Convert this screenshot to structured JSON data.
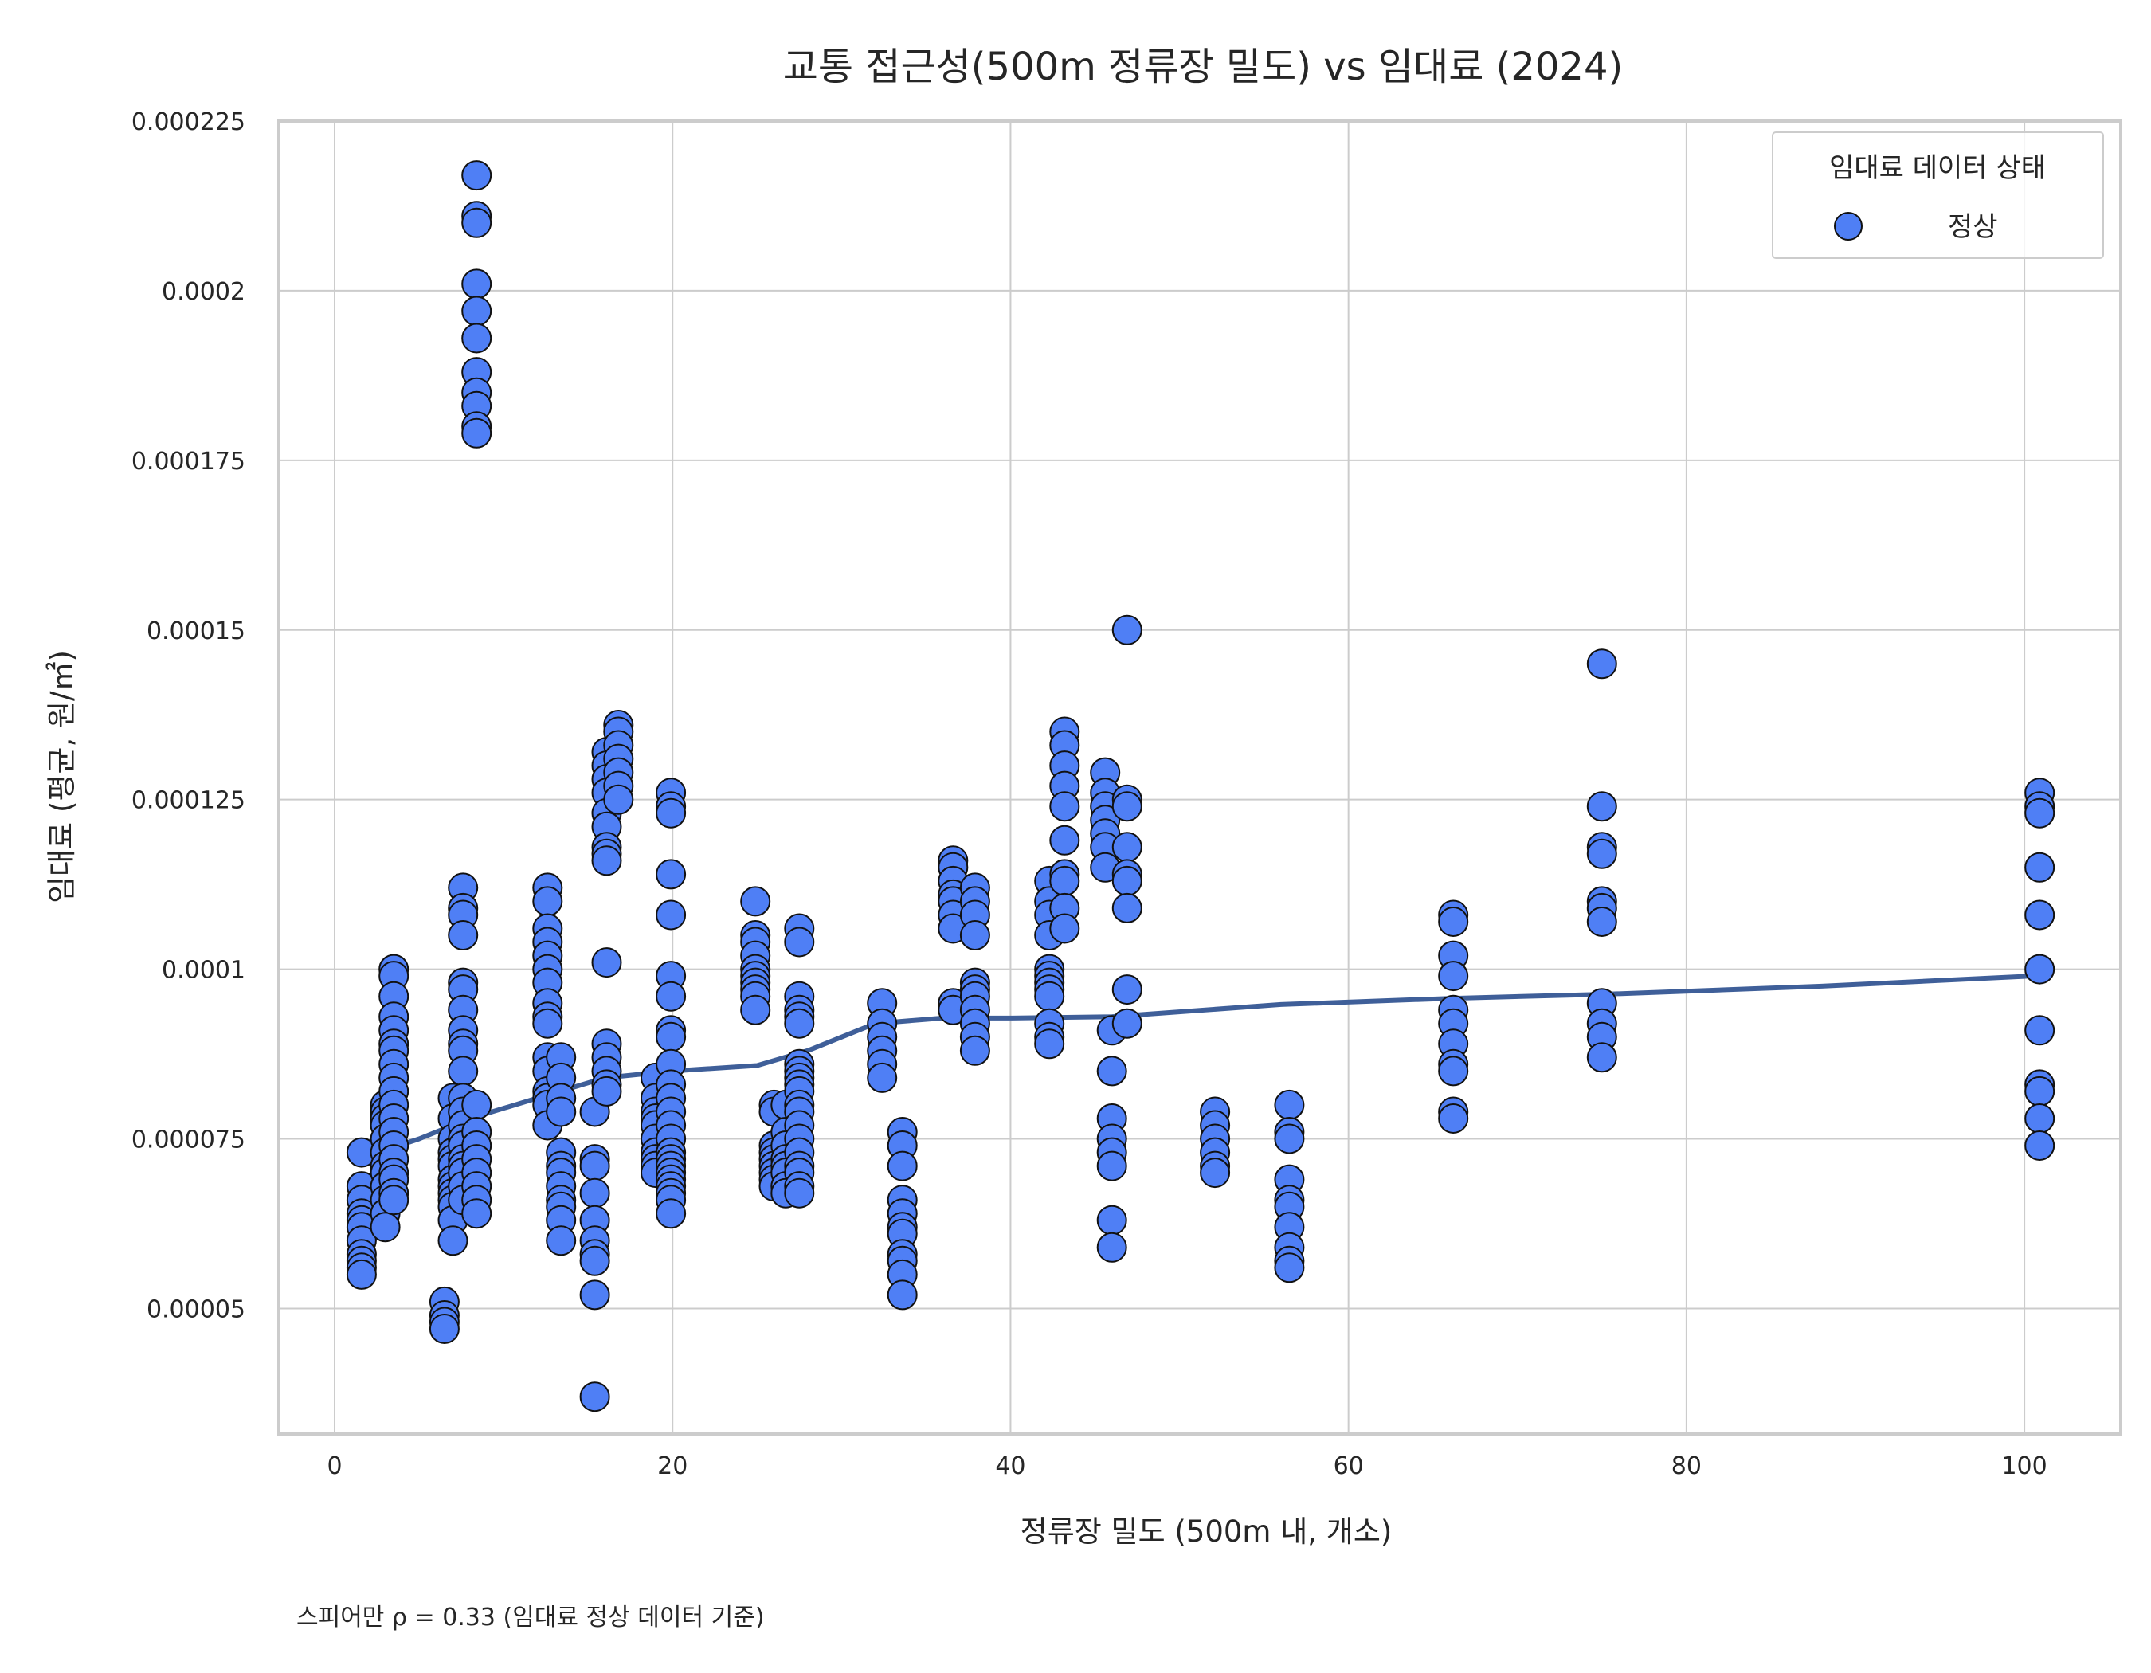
{
  "chart_data": {
    "type": "scatter",
    "title": "교통 접근성(500m 정류장 밀도) vs 임대료 (2024)",
    "xlabel": "정류장 밀도 (500m 내, 개소)",
    "ylabel": "임대료 (평균, 원/㎡)",
    "xlim": [
      -3.3,
      105.7
    ],
    "ylim": [
      3.15e-05,
      0.000225
    ],
    "x_ticks": [
      0,
      20,
      40,
      60,
      80,
      100
    ],
    "x_tick_labels": [
      "0",
      "20",
      "40",
      "60",
      "80",
      "100"
    ],
    "y_ticks": [
      5e-05,
      7.5e-05,
      0.0001,
      0.000125,
      0.00015,
      0.000175,
      0.0002,
      0.000225
    ],
    "y_tick_labels": [
      "0.00005",
      "0.000075",
      "0.0001",
      "0.000125",
      "0.00015",
      "0.000175",
      "0.0002",
      "0.000225"
    ],
    "grid": true,
    "legend": {
      "title": "임대료 데이터 상태",
      "position": "top-right",
      "entries": [
        {
          "label": "정상",
          "color": "#4f7ff5"
        }
      ]
    },
    "annotation": "스피어만 ρ = 0.33 (임대료 정상 데이터 기준)",
    "colors": {
      "point_fill": "#4f7ff5",
      "point_edge": "#111111",
      "trend_line": "#3f5f99",
      "grid": "#cccccc",
      "spine": "#cccccc"
    },
    "series": [
      {
        "name": "정상",
        "kind": "scatter",
        "groups": [
          {
            "x": 1.6,
            "y": [
              7.3e-05,
              6.8e-05,
              6.6e-05,
              6.4e-05,
              6.3e-05,
              6.2e-05,
              6e-05,
              5.8e-05,
              5.7e-05,
              5.6e-05,
              5.5e-05
            ]
          },
          {
            "x": 3.0,
            "y": [
              8e-05,
              7.9e-05,
              7.8e-05,
              7.7e-05,
              7.5e-05,
              7.3e-05,
              7.1e-05,
              7e-05,
              6.8e-05,
              6.6e-05,
              6.4e-05,
              6.2e-05
            ]
          },
          {
            "x": 3.5,
            "y": [
              0.0001,
              9.9e-05,
              9.6e-05,
              9.3e-05,
              9.1e-05,
              8.9e-05,
              8.8e-05,
              8.6e-05,
              8.4e-05,
              8.2e-05,
              8e-05,
              7.8e-05,
              7.6e-05,
              7.4e-05,
              7.2e-05,
              7e-05,
              6.9e-05,
              6.7e-05,
              6.6e-05
            ]
          },
          {
            "x": 6.5,
            "y": [
              5.1e-05,
              4.9e-05,
              4.8e-05,
              4.7e-05
            ]
          },
          {
            "x": 7.0,
            "y": [
              8.1e-05,
              7.8e-05,
              7.5e-05,
              7.3e-05,
              7.2e-05,
              7.1e-05,
              6.9e-05,
              6.8e-05,
              6.7e-05,
              6.6e-05,
              6.5e-05,
              6.3e-05,
              6e-05
            ]
          },
          {
            "x": 7.6,
            "y": [
              0.000112,
              0.000109,
              0.000108,
              0.000105,
              9.8e-05,
              9.7e-05,
              9.4e-05,
              9.1e-05,
              8.9e-05,
              8.8e-05,
              8.5e-05,
              8.1e-05,
              7.9e-05,
              7.7e-05,
              7.5e-05,
              7.4e-05,
              7.2e-05,
              7.1e-05,
              7e-05,
              6.8e-05,
              6.6e-05
            ]
          },
          {
            "x": 8.4,
            "y": [
              0.000217,
              0.000211,
              0.00021,
              0.000201,
              0.000197,
              0.000193,
              0.000188,
              0.000185,
              0.000183,
              0.00018,
              0.000179,
              8e-05,
              7.6e-05,
              7.4e-05,
              7.2e-05,
              7e-05,
              6.8e-05,
              6.6e-05,
              6.4e-05
            ]
          },
          {
            "x": 12.6,
            "y": [
              0.000112,
              0.00011,
              0.000106,
              0.000104,
              0.000102,
              0.0001,
              9.8e-05,
              9.5e-05,
              9.3e-05,
              9.2e-05,
              8.7e-05,
              8.5e-05,
              8.2e-05,
              8.1e-05,
              8e-05,
              7.7e-05
            ]
          },
          {
            "x": 13.4,
            "y": [
              8.7e-05,
              8.4e-05,
              8.1e-05,
              7.9e-05,
              7.3e-05,
              7.1e-05,
              7e-05,
              6.8e-05,
              6.6e-05,
              6.5e-05,
              6.3e-05,
              6e-05
            ]
          },
          {
            "x": 15.4,
            "y": [
              7.9e-05,
              7.2e-05,
              7.1e-05,
              6.7e-05,
              6.3e-05,
              6e-05,
              5.8e-05,
              5.7e-05,
              5.2e-05,
              3.7e-05
            ]
          },
          {
            "x": 16.1,
            "y": [
              0.000132,
              0.00013,
              0.000128,
              0.000126,
              0.000123,
              0.000121,
              0.000118,
              0.000117,
              0.000116,
              0.000101,
              8.9e-05,
              8.7e-05,
              8.5e-05,
              8.3e-05,
              8.2e-05
            ]
          },
          {
            "x": 16.8,
            "y": [
              0.000136,
              0.000135,
              0.000133,
              0.000131,
              0.000129,
              0.000127,
              0.000125
            ]
          },
          {
            "x": 19.0,
            "y": [
              8.4e-05,
              8.1e-05,
              7.9e-05,
              7.8e-05,
              7.7e-05,
              7.5e-05,
              7.3e-05,
              7.2e-05,
              7.1e-05,
              7e-05
            ]
          },
          {
            "x": 19.9,
            "y": [
              0.000126,
              0.000124,
              0.000123,
              0.000114,
              0.000108,
              9.9e-05,
              9.6e-05,
              9.1e-05,
              9e-05,
              8.6e-05,
              8.3e-05,
              8.1e-05,
              7.9e-05,
              7.7e-05,
              7.5e-05,
              7.3e-05,
              7.2e-05,
              7.1e-05,
              7e-05,
              6.9e-05,
              6.8e-05,
              6.7e-05,
              6.6e-05,
              6.4e-05
            ]
          },
          {
            "x": 24.9,
            "y": [
              0.00011,
              0.000105,
              0.000104,
              0.000102,
              0.0001,
              9.9e-05,
              9.8e-05,
              9.7e-05,
              9.6e-05,
              9.4e-05
            ]
          },
          {
            "x": 26.0,
            "y": [
              8e-05,
              7.9e-05,
              7.4e-05,
              7.3e-05,
              7.2e-05,
              7.1e-05,
              7e-05,
              6.9e-05,
              6.8e-05
            ]
          },
          {
            "x": 26.7,
            "y": [
              8e-05,
              7.6e-05,
              7.4e-05,
              7.2e-05,
              7.1e-05,
              7e-05,
              6.8e-05,
              6.7e-05
            ]
          },
          {
            "x": 27.5,
            "y": [
              0.000106,
              0.000104,
              9.6e-05,
              9.4e-05,
              9.3e-05,
              9.2e-05,
              8.6e-05,
              8.5e-05,
              8.4e-05,
              8.3e-05,
              8.2e-05,
              8e-05,
              7.9e-05,
              7.7e-05,
              7.5e-05,
              7.3e-05,
              7.1e-05,
              7e-05,
              6.8e-05,
              6.7e-05
            ]
          },
          {
            "x": 32.4,
            "y": [
              9.5e-05,
              9.2e-05,
              9e-05,
              8.8e-05,
              8.6e-05,
              8.4e-05
            ]
          },
          {
            "x": 33.6,
            "y": [
              7.6e-05,
              7.4e-05,
              7.1e-05,
              6.6e-05,
              6.4e-05,
              6.2e-05,
              6.1e-05,
              5.8e-05,
              5.7e-05,
              5.5e-05,
              5.2e-05
            ]
          },
          {
            "x": 36.6,
            "y": [
              0.000116,
              0.000115,
              0.000113,
              0.000111,
              0.00011,
              0.000108,
              0.000106,
              9.5e-05,
              9.4e-05
            ]
          },
          {
            "x": 37.9,
            "y": [
              0.000112,
              0.00011,
              0.000108,
              0.000105,
              9.8e-05,
              9.7e-05,
              9.6e-05,
              9.4e-05,
              9.2e-05,
              9e-05,
              8.8e-05
            ]
          },
          {
            "x": 42.3,
            "y": [
              0.000113,
              0.00011,
              0.000108,
              0.000105,
              0.0001,
              9.9e-05,
              9.8e-05,
              9.7e-05,
              9.6e-05,
              9.2e-05,
              9e-05,
              8.9e-05
            ]
          },
          {
            "x": 43.2,
            "y": [
              0.000135,
              0.000133,
              0.00013,
              0.000127,
              0.000124,
              0.000119,
              0.000114,
              0.000113,
              0.000109,
              0.000106
            ]
          },
          {
            "x": 45.6,
            "y": [
              0.000129,
              0.000126,
              0.000124,
              0.000122,
              0.00012,
              0.000118,
              0.000115
            ]
          },
          {
            "x": 46.0,
            "y": [
              9.1e-05,
              8.5e-05,
              7.8e-05,
              7.5e-05,
              7.3e-05,
              7.1e-05,
              6.3e-05,
              5.9e-05
            ]
          },
          {
            "x": 46.9,
            "y": [
              0.00015,
              0.000125,
              0.000124,
              0.000118,
              0.000114,
              0.000113,
              0.000109,
              9.7e-05,
              9.2e-05
            ]
          },
          {
            "x": 52.1,
            "y": [
              7.9e-05,
              7.7e-05,
              7.5e-05,
              7.3e-05,
              7.1e-05,
              7e-05
            ]
          },
          {
            "x": 56.5,
            "y": [
              8e-05,
              7.6e-05,
              7.5e-05,
              6.9e-05,
              6.6e-05,
              6.5e-05,
              6.2e-05,
              5.9e-05,
              5.7e-05,
              5.6e-05
            ]
          },
          {
            "x": 66.2,
            "y": [
              0.000108,
              0.000107,
              0.000102,
              9.9e-05,
              9.4e-05,
              9.2e-05,
              8.9e-05,
              8.6e-05,
              8.5e-05,
              7.9e-05,
              7.8e-05
            ]
          },
          {
            "x": 75.0,
            "y": [
              0.000145,
              0.000124,
              0.000118,
              0.000117,
              0.00011,
              0.000109,
              0.000107,
              9.5e-05,
              9.2e-05,
              9e-05,
              8.7e-05
            ]
          },
          {
            "x": 100.9,
            "y": [
              0.000126,
              0.000124,
              0.000123,
              0.000115,
              0.000108,
              0.0001,
              9.1e-05,
              8.3e-05,
              8.2e-05,
              7.8e-05,
              7.4e-05
            ]
          }
        ]
      },
      {
        "kind": "line",
        "x": [
          2,
          5,
          8,
          12,
          16,
          20,
          25,
          28,
          32,
          36,
          40,
          46,
          56,
          66,
          75,
          88,
          100.5
        ],
        "y": [
          7.25e-05,
          7.5e-05,
          7.8e-05,
          8.1e-05,
          8.4e-05,
          8.5e-05,
          8.58e-05,
          8.8e-05,
          9.2e-05,
          9.28e-05,
          9.28e-05,
          9.3e-05,
          9.48e-05,
          9.57e-05,
          9.63e-05,
          9.75e-05,
          9.9e-05
        ]
      }
    ]
  }
}
